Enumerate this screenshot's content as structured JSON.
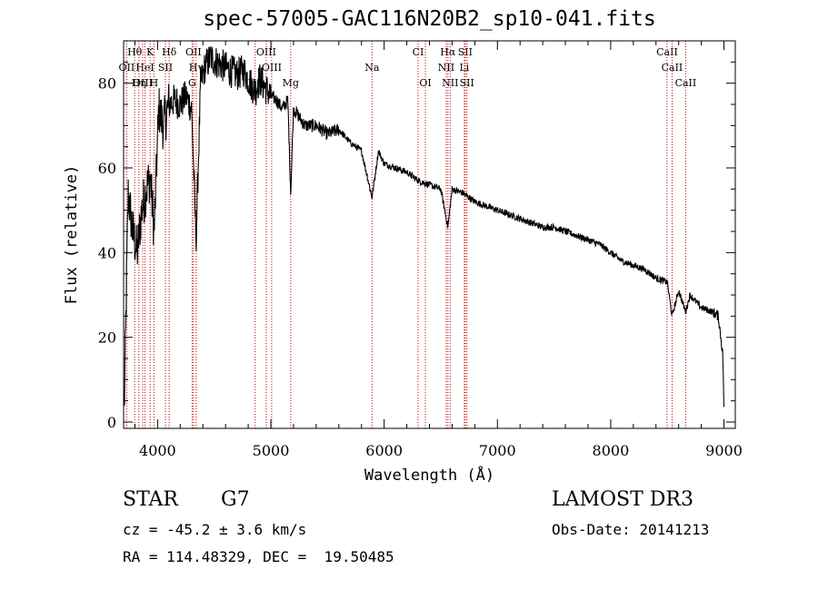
{
  "title": "spec-57005-GAC116N20B2_sp10-041.fits",
  "chart_data": {
    "type": "line",
    "title": "spec-57005-GAC116N20B2_sp10-041.fits",
    "xlabel": "Wavelength (Å)",
    "ylabel": "Flux (relative)",
    "xlim": [
      3700,
      9100
    ],
    "ylim": [
      -1.5,
      90
    ],
    "xticks": [
      4000,
      5000,
      6000,
      7000,
      8000,
      9000
    ],
    "yticks": [
      0,
      20,
      40,
      60,
      80
    ],
    "xtick_labels": [
      "4000",
      "5000",
      "6000",
      "7000",
      "8000",
      "9000"
    ],
    "ytick_labels": [
      "0",
      "20",
      "40",
      "60",
      "80"
    ],
    "series": [
      {
        "name": "flux",
        "x": [
          3705,
          3740,
          3780,
          3820,
          3860,
          3900,
          3935,
          3970,
          4010,
          4050,
          4100,
          4150,
          4200,
          4250,
          4300,
          4340,
          4380,
          4420,
          4470,
          4520,
          4580,
          4640,
          4700,
          4760,
          4820,
          4861,
          4900,
          4950,
          5000,
          5050,
          5100,
          5150,
          5175,
          5200,
          5300,
          5400,
          5500,
          5600,
          5700,
          5800,
          5893,
          5950,
          6000,
          6100,
          6200,
          6300,
          6400,
          6500,
          6563,
          6600,
          6700,
          6800,
          6900,
          7000,
          7100,
          7200,
          7300,
          7400,
          7500,
          7600,
          7700,
          7800,
          7900,
          8000,
          8100,
          8200,
          8300,
          8400,
          8500,
          8542,
          8600,
          8662,
          8700,
          8800,
          8900,
          8950,
          8990,
          9000
        ],
        "y": [
          2,
          54,
          45,
          40,
          50,
          55,
          58,
          45,
          74,
          70,
          75,
          76,
          75,
          77,
          74,
          43,
          80,
          84,
          86,
          85,
          84,
          83,
          82,
          83,
          80,
          78,
          81,
          79,
          77,
          76,
          74,
          76,
          54,
          74,
          70,
          70,
          68,
          69,
          66,
          64,
          53,
          64,
          61,
          60,
          59,
          57,
          56,
          55,
          46,
          55,
          54,
          52,
          51,
          50,
          49,
          48,
          47,
          46,
          46,
          45,
          44,
          43,
          42,
          40,
          38,
          37,
          36,
          34,
          33,
          25,
          31,
          26,
          30,
          27,
          26,
          25,
          16,
          3
        ]
      }
    ],
    "spectral_lines": [
      {
        "label": "Hθ",
        "wl": 3798,
        "row": 0
      },
      {
        "label": "K",
        "wl": 3934,
        "row": 0
      },
      {
        "label": "Hδ",
        "wl": 4102,
        "row": 0
      },
      {
        "label": "OII",
        "wl": 4317,
        "row": 0
      },
      {
        "label": "OIII",
        "wl": 4959,
        "row": 0
      },
      {
        "label": "CI",
        "wl": 6300,
        "row": 0
      },
      {
        "label": "Hα",
        "wl": 6563,
        "row": 0
      },
      {
        "label": "SII",
        "wl": 6716,
        "row": 0
      },
      {
        "label": "CaII",
        "wl": 8498,
        "row": 0
      },
      {
        "label": "OII",
        "wl": 3727,
        "row": 1
      },
      {
        "label": "HeI",
        "wl": 3889,
        "row": 1
      },
      {
        "label": "SII",
        "wl": 4069,
        "row": 1
      },
      {
        "label": "Hγ",
        "wl": 4341,
        "row": 1
      },
      {
        "label": "OIII",
        "wl": 5007,
        "row": 1
      },
      {
        "label": "Na",
        "wl": 5893,
        "row": 1
      },
      {
        "label": "NII",
        "wl": 6548,
        "row": 1
      },
      {
        "label": "Li",
        "wl": 6708,
        "row": 1
      },
      {
        "label": "CaII",
        "wl": 8542,
        "row": 1
      },
      {
        "label": "OIII",
        "wl": 3869,
        "row": 2
      },
      {
        "label": "Hη",
        "wl": 3835,
        "row": 2
      },
      {
        "label": "H",
        "wl": 3968,
        "row": 2
      },
      {
        "label": "G",
        "wl": 4305,
        "row": 2
      },
      {
        "label": "Hβ",
        "wl": 4861,
        "row": 2
      },
      {
        "label": "Mg",
        "wl": 5175,
        "row": 2
      },
      {
        "label": "OI",
        "wl": 6364,
        "row": 2
      },
      {
        "label": "NII",
        "wl": 6583,
        "row": 2
      },
      {
        "label": "SII",
        "wl": 6731,
        "row": 2
      },
      {
        "label": "CaII",
        "wl": 8662,
        "row": 2
      }
    ]
  },
  "info": {
    "object_type": "STAR",
    "subclass": "G7",
    "survey": "LAMOST DR3",
    "cz_text": "cz = -45.2 ± 3.6 km/s",
    "obs_date": "Obs-Date: 20141213",
    "coords": "RA = 114.48329, DEC =  19.50485"
  }
}
